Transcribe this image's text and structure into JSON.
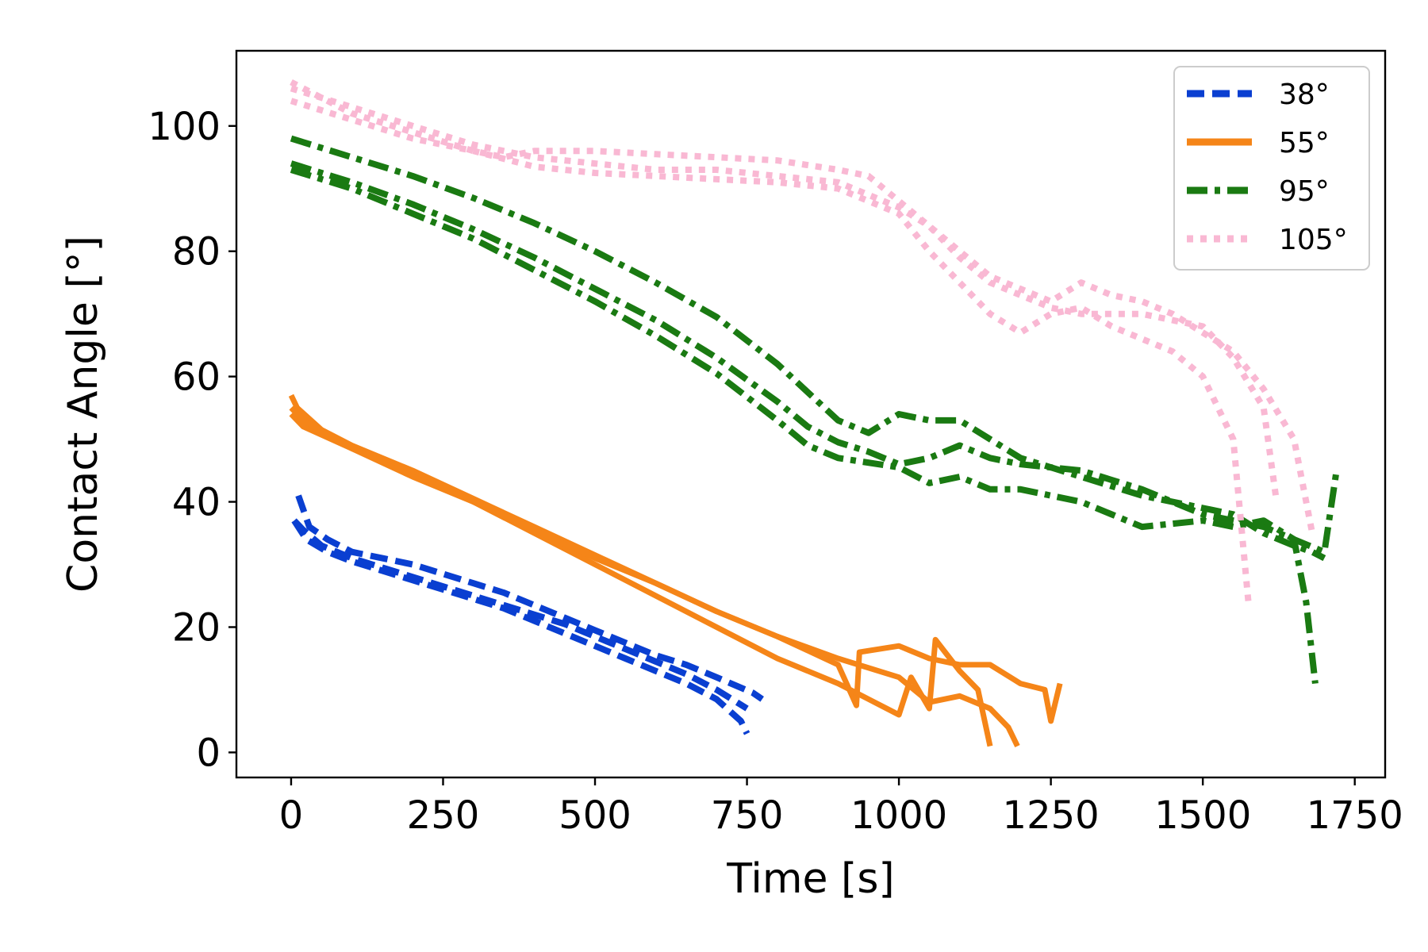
{
  "chart_data": {
    "type": "line",
    "title": "",
    "xlabel": "Time [s]",
    "ylabel": "Contact Angle [°]",
    "xlim": [
      -90,
      1800
    ],
    "ylim": [
      -4,
      112
    ],
    "xticks": [
      0,
      250,
      500,
      750,
      1000,
      1250,
      1500,
      1750
    ],
    "yticks": [
      0,
      20,
      40,
      60,
      80,
      100
    ],
    "legend_position": "top-right",
    "groups": [
      {
        "name": "38°",
        "color": "#0a3fd1",
        "dash": "dashed",
        "runs": [
          {
            "x": [
              5,
              25,
              60,
              100,
              150,
              200,
              250,
              300,
              350,
              400,
              450,
              500,
              550,
              600,
              650,
              700,
              740,
              750
            ],
            "y": [
              37,
              34,
              32,
              30.5,
              29,
              27.5,
              26,
              24.5,
              23,
              21,
              19,
              17,
              15,
              13,
              11,
              8.5,
              5,
              3
            ]
          },
          {
            "x": [
              12,
              30,
              60,
              100,
              150,
              200,
              250,
              300,
              350,
              400,
              450,
              500,
              550,
              600,
              650,
              700,
              760,
              775
            ],
            "y": [
              41,
              36,
              34,
              32,
              31,
              30,
              28.5,
              27,
              25.5,
              23.5,
              21.5,
              19.5,
              17.5,
              15.5,
              14,
              12,
              9.5,
              8.5
            ]
          },
          {
            "x": [
              5,
              20,
              50,
              100,
              150,
              200,
              250,
              300,
              350,
              400,
              450,
              500,
              550,
              600,
              650,
              700,
              750
            ],
            "y": [
              37,
              35.5,
              33,
              31,
              29.5,
              28,
              26.5,
              25,
              23.5,
              22,
              20.5,
              18.5,
              16.5,
              14.5,
              12.5,
              10,
              7
            ]
          }
        ]
      },
      {
        "name": "55°",
        "color": "#f58518",
        "dash": "solid",
        "runs": [
          {
            "x": [
              0,
              10,
              50,
              100,
              200,
              300,
              400,
              500,
              600,
              700,
              800,
              900,
              930,
              935,
              1000,
              1050,
              1100,
              1150,
              1200,
              1240,
              1250,
              1265
            ],
            "y": [
              57,
              55,
              51.5,
              49,
              45,
              40.5,
              36,
              31.5,
              27,
              22.5,
              18.5,
              14,
              7.5,
              16,
              17,
              15,
              14,
              14,
              11,
              10,
              5,
              11
            ]
          },
          {
            "x": [
              0,
              20,
              100,
              200,
              300,
              400,
              500,
              600,
              700,
              800,
              900,
              950,
              1000,
              1020,
              1050,
              1060,
              1100,
              1130,
              1150
            ],
            "y": [
              54,
              52,
              48.5,
              44.5,
              40,
              35,
              30,
              25,
              20,
              15,
              11,
              8.5,
              6,
              12,
              7,
              18,
              13,
              10,
              1
            ]
          },
          {
            "x": [
              0,
              20,
              100,
              200,
              300,
              400,
              500,
              600,
              700,
              800,
              900,
              1000,
              1050,
              1100,
              1150,
              1180,
              1195
            ],
            "y": [
              55,
              53,
              48.5,
              44,
              40,
              35.5,
              31,
              27,
              22.5,
              18.5,
              15,
              12,
              8,
              9,
              7,
              4,
              1
            ]
          }
        ]
      },
      {
        "name": "95°",
        "color": "#1a7a12",
        "dash": "dashdot",
        "runs": [
          {
            "x": [
              0,
              100,
              200,
              300,
              400,
              500,
              600,
              700,
              800,
              850,
              900,
              950,
              1000,
              1050,
              1100,
              1200,
              1300,
              1400,
              1500,
              1550,
              1600,
              1650,
              1680,
              1700
            ],
            "y": [
              98,
              95,
              92,
              88.5,
              84.5,
              80,
              75,
              69.5,
              62,
              57.5,
              53,
              51,
              54,
              53,
              53,
              47,
              44,
              41,
              39,
              38,
              35,
              33,
              32,
              31
            ]
          },
          {
            "x": [
              0,
              100,
              200,
              300,
              400,
              500,
              600,
              700,
              800,
              850,
              900,
              950,
              1000,
              1050,
              1100,
              1150,
              1200,
              1300,
              1400,
              1500,
              1600,
              1650,
              1700,
              1720
            ],
            "y": [
              94,
              91,
              87.5,
              83.5,
              79,
              74,
              69,
              63,
              56,
              52,
              49.5,
              48,
              46,
              47,
              49,
              47,
              46,
              45,
              42,
              38,
              36,
              34,
              32,
              45
            ]
          },
          {
            "x": [
              0,
              100,
              200,
              300,
              400,
              500,
              600,
              700,
              800,
              850,
              900,
              1000,
              1050,
              1100,
              1150,
              1200,
              1300,
              1400,
              1500,
              1550,
              1600,
              1650,
              1670,
              1685
            ],
            "y": [
              93,
              90,
              86,
              82,
              77,
              72,
              66.5,
              60.5,
              53,
              49,
              47,
              45.5,
              43,
              44,
              42,
              42,
              40,
              36,
              37,
              36,
              37,
              34,
              24,
              11
            ]
          }
        ]
      },
      {
        "name": "105°",
        "color": "#f9b8d3",
        "dash": "dotted",
        "runs": [
          {
            "x": [
              0,
              100,
              200,
              300,
              350,
              400,
              500,
              600,
              700,
              800,
              900,
              950,
              1000,
              1050,
              1100,
              1150,
              1200,
              1250,
              1300,
              1350,
              1400,
              1450,
              1500,
              1550,
              1600,
              1650,
              1680
            ],
            "y": [
              107,
              102,
              99,
              96,
              95,
              96,
              96,
              95.5,
              95,
              94.5,
              93,
              92,
              88,
              84,
              80,
              76,
              74,
              72,
              75,
              73,
              72,
              70,
              67,
              64,
              58,
              50,
              35
            ]
          },
          {
            "x": [
              0,
              100,
              200,
              300,
              400,
              500,
              600,
              700,
              800,
              900,
              1000,
              1050,
              1100,
              1150,
              1200,
              1250,
              1300,
              1350,
              1400,
              1450,
              1500,
              1550,
              1575
            ],
            "y": [
              104,
              101,
              98,
              96,
              93.5,
              92.5,
              92,
              91.5,
              91,
              90,
              86,
              80,
              75,
              70,
              67,
              70,
              71,
              68,
              66,
              64,
              60,
              50,
              24
            ]
          },
          {
            "x": [
              0,
              100,
              200,
              300,
              400,
              500,
              600,
              700,
              800,
              900,
              1000,
              1050,
              1100,
              1150,
              1200,
              1250,
              1300,
              1350,
              1400,
              1450,
              1500,
              1550,
              1600,
              1620
            ],
            "y": [
              106,
              103,
              100,
              97,
              95,
              94,
              93,
              93,
              92,
              91,
              87,
              84,
              79,
              75,
              73,
              71,
              70,
              70,
              70,
              69,
              68,
              63,
              55,
              41
            ]
          }
        ]
      }
    ]
  }
}
